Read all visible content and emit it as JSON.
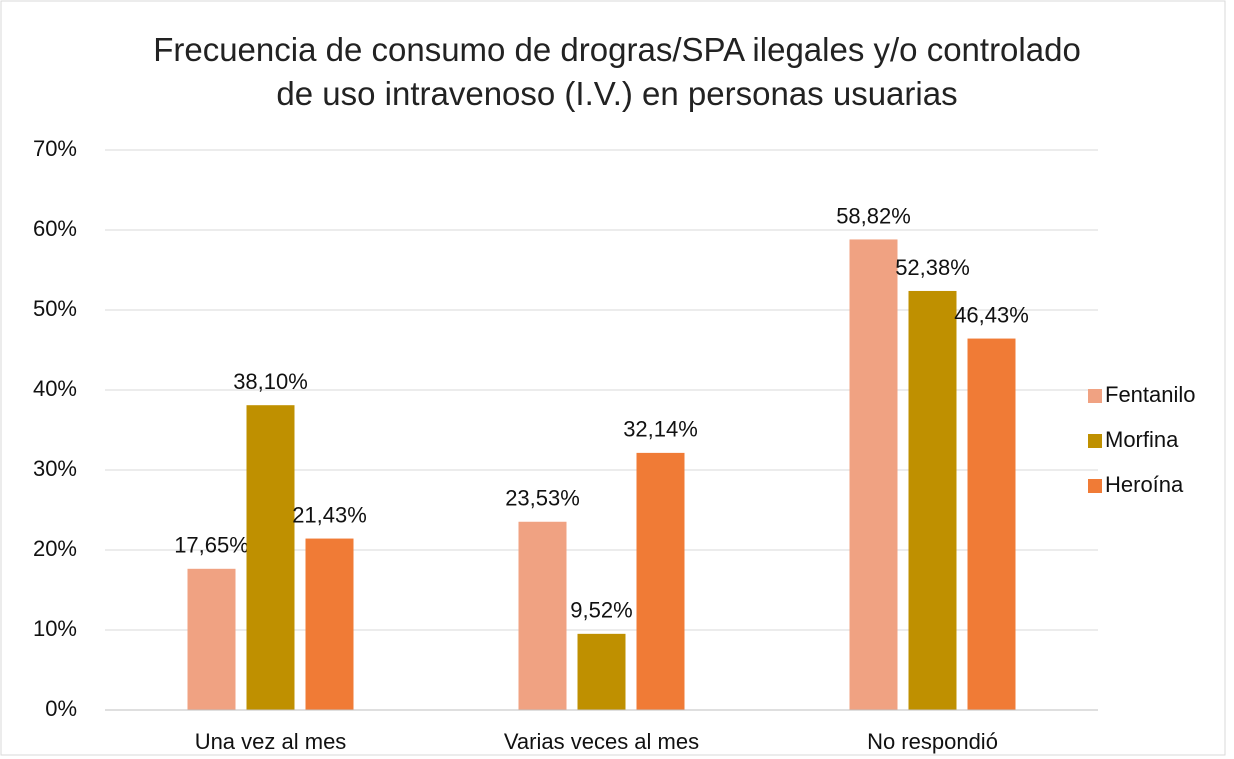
{
  "chart_data": {
    "type": "bar",
    "title": "Frecuencia de consumo de drogras/SPA ilegales y/o controlado de uso intravenoso (I.V.) en personas usuarias",
    "categories": [
      "Una vez al mes",
      "Varias veces al mes",
      "No respondió"
    ],
    "series": [
      {
        "name": "Fentanilo",
        "color": "#f0a282",
        "values": [
          17.65,
          23.53,
          58.82
        ],
        "value_labels": [
          "17,65%",
          "23,53%",
          "58,82%"
        ]
      },
      {
        "name": "Morfina",
        "color": "#bf9000",
        "values": [
          38.1,
          9.52,
          52.38
        ],
        "value_labels": [
          "38,10%",
          "9,52%",
          "52,38%"
        ]
      },
      {
        "name": "Heroína",
        "color": "#f07b36",
        "values": [
          21.43,
          32.14,
          46.43
        ],
        "value_labels": [
          "21,43%",
          "32,14%",
          "46,43%"
        ]
      }
    ],
    "ylim": [
      0,
      70
    ],
    "yticks": [
      {
        "value": 0,
        "label": "0%"
      },
      {
        "value": 10,
        "label": "10%"
      },
      {
        "value": 20,
        "label": "20%"
      },
      {
        "value": 30,
        "label": "30%"
      },
      {
        "value": 40,
        "label": "40%"
      },
      {
        "value": 50,
        "label": "50%"
      },
      {
        "value": 60,
        "label": "60%"
      },
      {
        "value": 70,
        "label": "70%"
      }
    ],
    "grid": true,
    "legend": "right"
  }
}
